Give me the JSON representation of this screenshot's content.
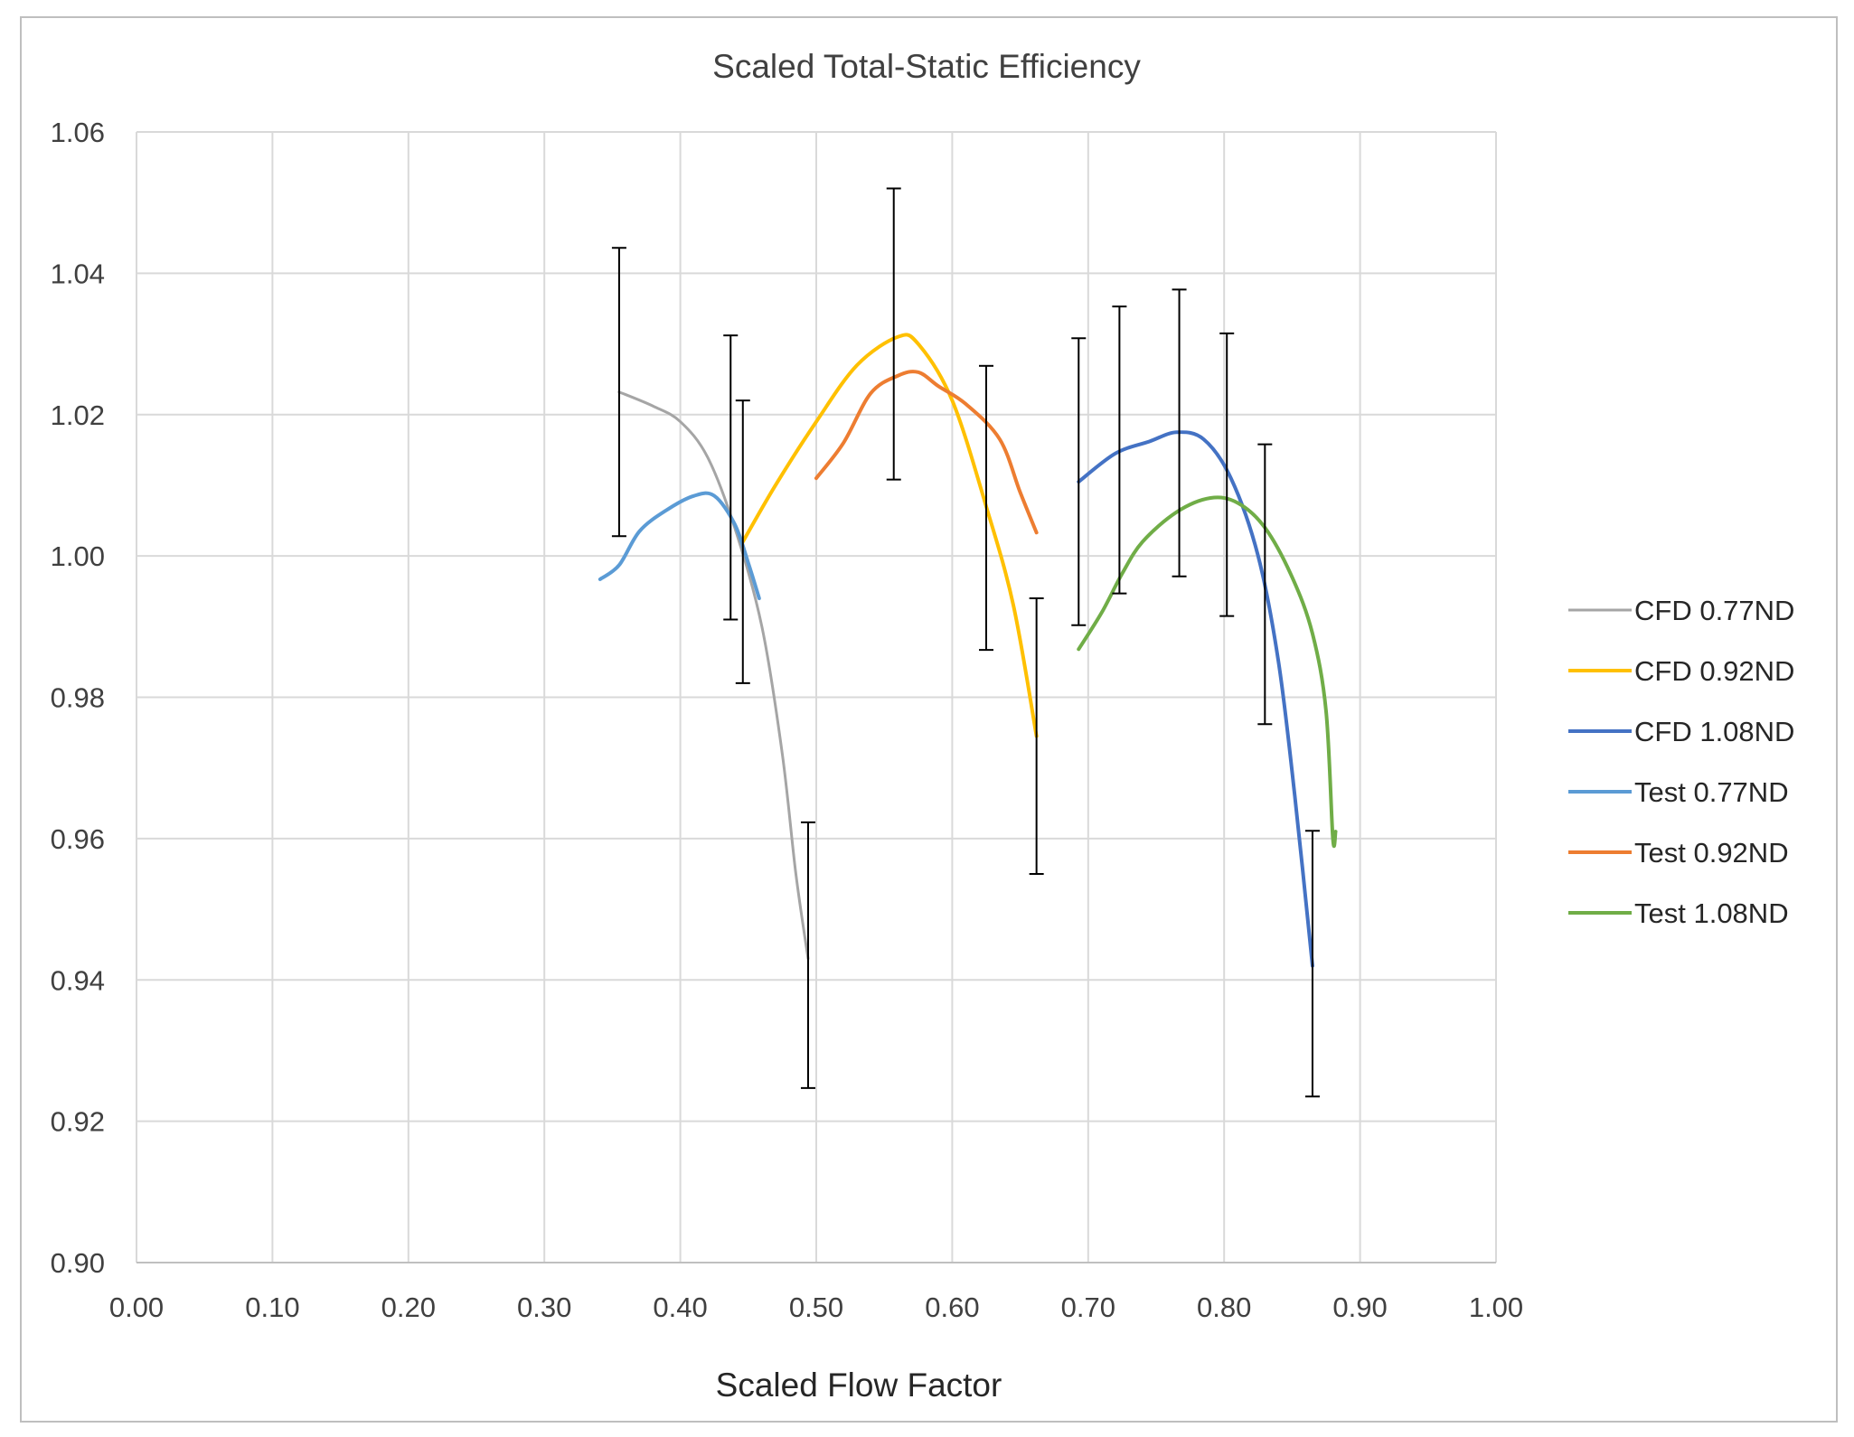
{
  "chart_data": {
    "type": "line",
    "title": "Scaled Total-Static Efficiency",
    "xlabel": "Scaled Flow Factor",
    "ylabel": "",
    "xlim": [
      0.0,
      1.0
    ],
    "ylim": [
      0.9,
      1.06
    ],
    "xticks": [
      "0.00",
      "0.10",
      "0.20",
      "0.30",
      "0.40",
      "0.50",
      "0.60",
      "0.70",
      "0.80",
      "0.90",
      "1.00"
    ],
    "yticks": [
      "0.90",
      "0.92",
      "0.94",
      "0.96",
      "0.98",
      "1.00",
      "1.02",
      "1.04",
      "1.06"
    ],
    "grid": true,
    "legend_position": "right",
    "series": [
      {
        "name": "CFD 0.77ND",
        "color": "#a5a5a5",
        "width": 3,
        "points": [
          [
            0.355,
            1.0232
          ],
          [
            0.38,
            1.0212
          ],
          [
            0.4,
            1.019
          ],
          [
            0.42,
            1.014
          ],
          [
            0.44,
            1.004
          ],
          [
            0.46,
            0.99
          ],
          [
            0.475,
            0.972
          ],
          [
            0.485,
            0.955
          ],
          [
            0.494,
            0.943
          ]
        ],
        "error_bars": [
          [
            0.355,
            1.0232,
            0.0204
          ],
          [
            0.494,
            0.9435,
            0.0188
          ]
        ]
      },
      {
        "name": "CFD 0.92ND",
        "color": "#ffc000",
        "width": 4,
        "points": [
          [
            0.446,
            1.002
          ],
          [
            0.47,
            1.01
          ],
          [
            0.5,
            1.019
          ],
          [
            0.53,
            1.027
          ],
          [
            0.56,
            1.031
          ],
          [
            0.575,
            1.03
          ],
          [
            0.6,
            1.022
          ],
          [
            0.625,
            1.007
          ],
          [
            0.645,
            0.993
          ],
          [
            0.662,
            0.9745
          ]
        ],
        "error_bars": [
          [
            0.446,
            1.002,
            0.02
          ],
          [
            0.662,
            0.9745,
            0.0195
          ]
        ]
      },
      {
        "name": "CFD 1.08ND",
        "color": "#4472c4",
        "width": 4,
        "points": [
          [
            0.693,
            1.0105
          ],
          [
            0.72,
            1.0145
          ],
          [
            0.745,
            1.0162
          ],
          [
            0.765,
            1.0175
          ],
          [
            0.785,
            1.0165
          ],
          [
            0.805,
            1.011
          ],
          [
            0.825,
            1.0
          ],
          [
            0.84,
            0.985
          ],
          [
            0.852,
            0.966
          ],
          [
            0.865,
            0.942
          ]
        ],
        "error_bars": [
          [
            0.693,
            1.0105,
            0.0203
          ],
          [
            0.865,
            0.9423,
            0.0188
          ]
        ]
      },
      {
        "name": "Test 0.77ND",
        "color": "#5b9bd5",
        "width": 4,
        "points": [
          [
            0.341,
            0.9967
          ],
          [
            0.355,
            0.9987
          ],
          [
            0.37,
            1.0035
          ],
          [
            0.39,
            1.0065
          ],
          [
            0.41,
            1.0085
          ],
          [
            0.425,
            1.0085
          ],
          [
            0.44,
            1.0045
          ],
          [
            0.45,
            0.999
          ],
          [
            0.458,
            0.994
          ]
        ],
        "error_bars": [
          [
            0.437,
            1.0111,
            0.0201
          ]
        ]
      },
      {
        "name": "Test 0.92ND",
        "color": "#ed7d31",
        "width": 4,
        "points": [
          [
            0.5,
            1.011
          ],
          [
            0.52,
            1.016
          ],
          [
            0.54,
            1.023
          ],
          [
            0.56,
            1.0255
          ],
          [
            0.575,
            1.026
          ],
          [
            0.59,
            1.024
          ],
          [
            0.61,
            1.0215
          ],
          [
            0.635,
            1.0165
          ],
          [
            0.65,
            1.009
          ],
          [
            0.662,
            1.0033
          ]
        ],
        "error_bars": [
          [
            0.557,
            1.0314,
            0.0206
          ],
          [
            0.625,
            1.0068,
            0.0201
          ]
        ]
      },
      {
        "name": "Test 1.08ND",
        "color": "#70ad47",
        "width": 4,
        "points": [
          [
            0.693,
            0.9868
          ],
          [
            0.71,
            0.992
          ],
          [
            0.725,
            0.9975
          ],
          [
            0.74,
            1.002
          ],
          [
            0.765,
            1.0062
          ],
          [
            0.79,
            1.0082
          ],
          [
            0.81,
            1.0075
          ],
          [
            0.83,
            1.004
          ],
          [
            0.85,
            0.997
          ],
          [
            0.865,
            0.989
          ],
          [
            0.875,
            0.978
          ],
          [
            0.88,
            0.96
          ],
          [
            0.882,
            0.961
          ]
        ],
        "error_bars": [
          [
            0.723,
            1.015,
            0.0203
          ],
          [
            0.767,
            1.0174,
            0.0203
          ],
          [
            0.802,
            1.0115,
            0.02
          ],
          [
            0.83,
            0.996,
            0.0198
          ]
        ]
      }
    ]
  }
}
